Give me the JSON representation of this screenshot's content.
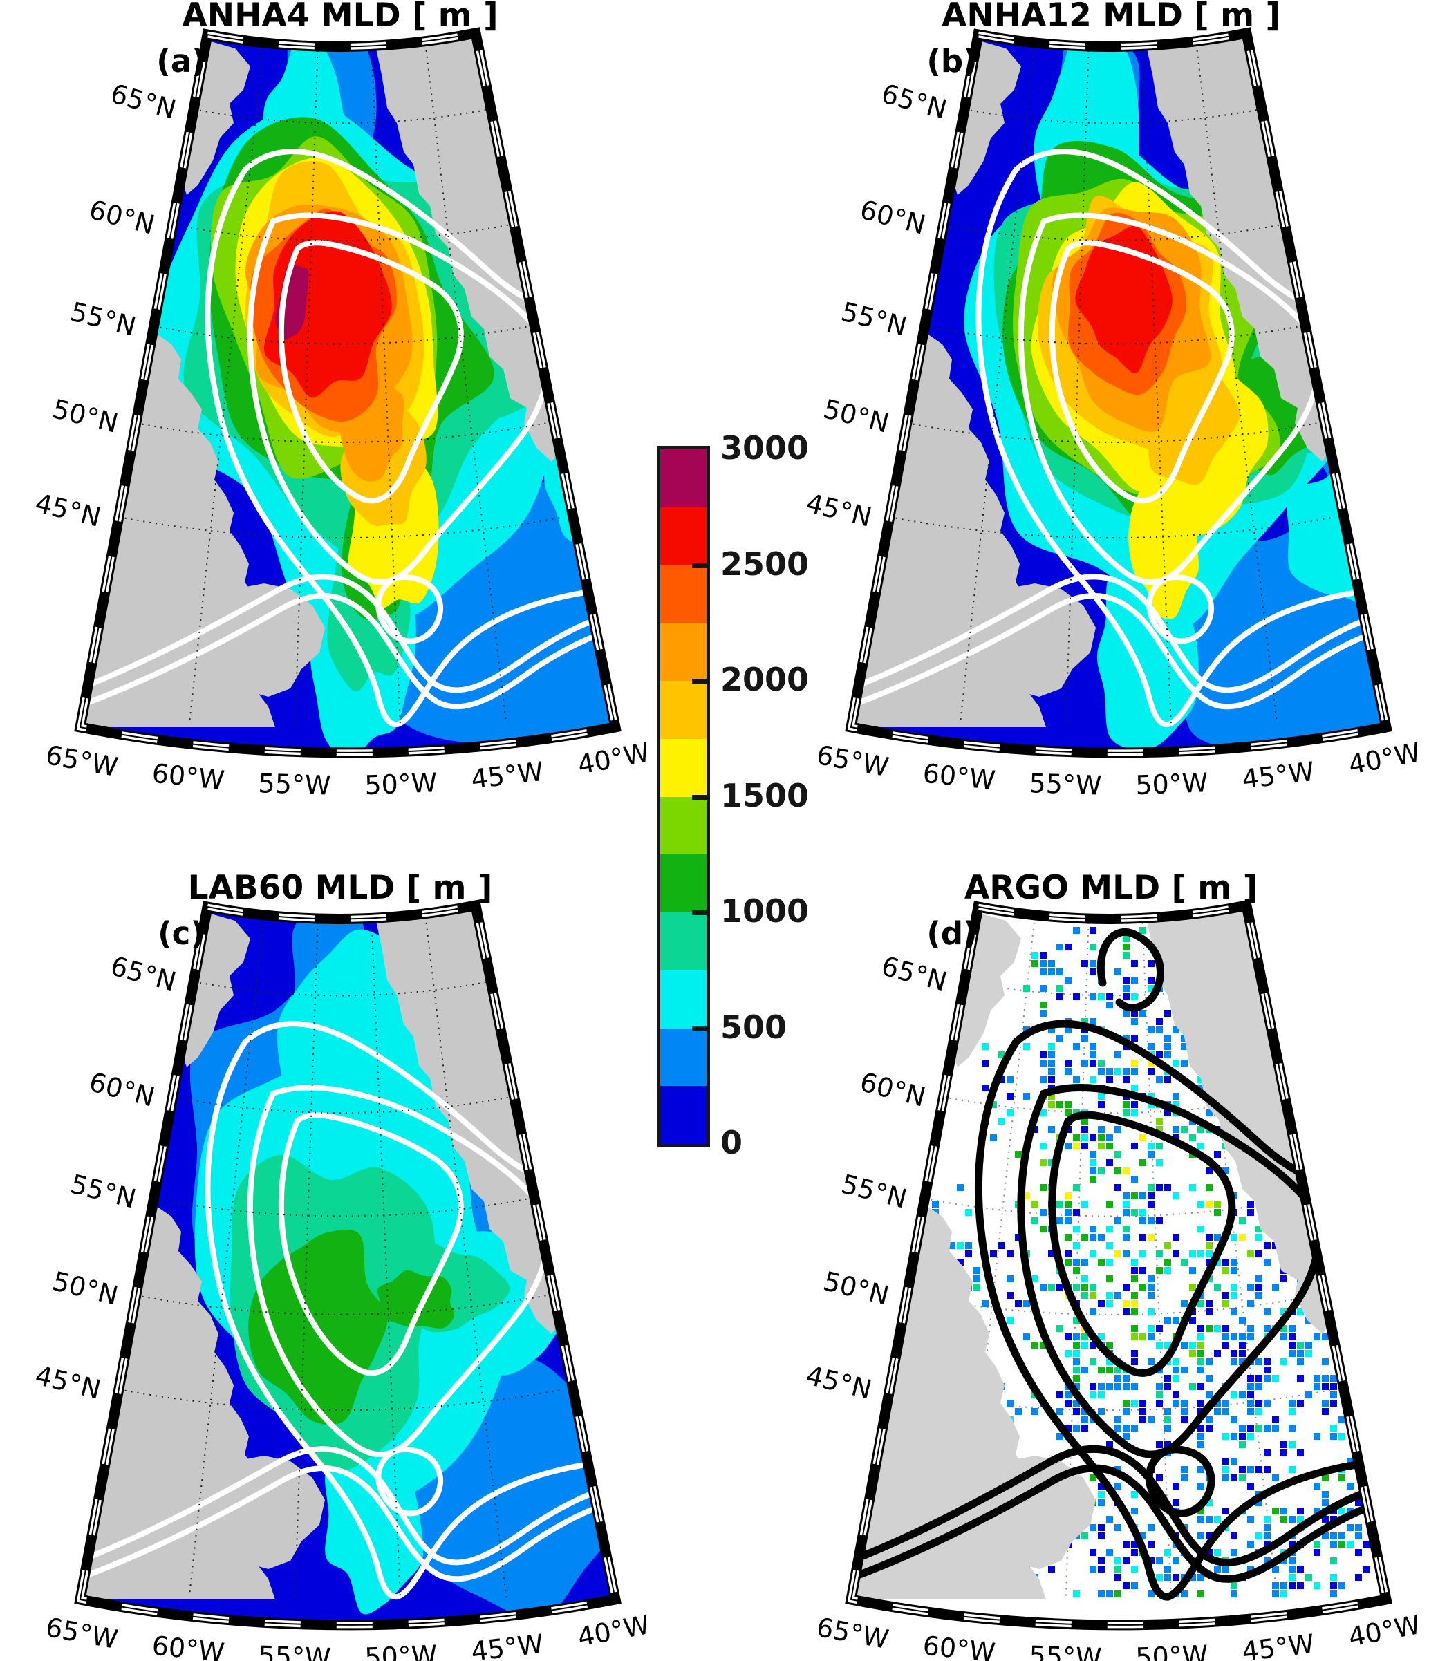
{
  "figure": {
    "panels": [
      {
        "id": "a",
        "letter": "(a)",
        "title": "ANHA4 MLD [ m ]"
      },
      {
        "id": "b",
        "letter": "(b)",
        "title": "ANHA12 MLD [ m ]"
      },
      {
        "id": "c",
        "letter": "(c)",
        "title": "LAB60 MLD [ m ]"
      },
      {
        "id": "d",
        "letter": "(d)",
        "title": "ARGO MLD [ m ]"
      }
    ],
    "axis": {
      "lat_labels": [
        "65°N",
        "60°N",
        "55°N",
        "50°N",
        "45°N"
      ],
      "lon_labels": [
        "65°W",
        "60°W",
        "55°W",
        "50°W",
        "45°W",
        "40°W"
      ]
    },
    "colorbar": {
      "tick_labels": [
        "3000",
        "2500",
        "2000",
        "1500",
        "1000",
        "500",
        "0"
      ],
      "colors_top_to_bottom": [
        "#A60556",
        "#F60A00",
        "#FF5A00",
        "#FF9D00",
        "#FFC400",
        "#FFF200",
        "#7CD600",
        "#12B212",
        "#0CD693",
        "#00EFEF",
        "#0087F5",
        "#0000DC"
      ]
    },
    "map_colors": {
      "ocean_model": "#0000DC",
      "ocean_argo": "#FFFFFF",
      "land_model": "#C8C8C8",
      "land_argo": "#D2D2D2",
      "contour_model": "#FFFFFF",
      "contour_argo": "#000000",
      "frame": "#000000",
      "graticule_model": "#222222",
      "graticule_argo": "#888888"
    }
  }
}
